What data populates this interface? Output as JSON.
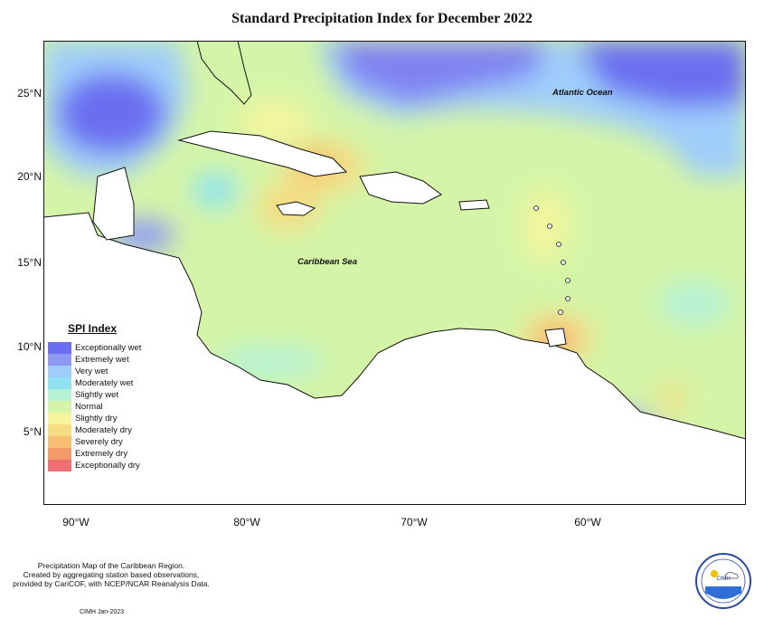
{
  "title": "Standard Precipitation Index for December 2022",
  "latitude_labels": [
    "25°N",
    "20°N",
    "15°N",
    "10°N",
    "5°N"
  ],
  "longitude_labels": [
    "90°W",
    "80°W",
    "70°W",
    "60°W"
  ],
  "place_labels": {
    "ocean": "Atlantic Ocean",
    "sea": "Caribbean Sea"
  },
  "legend": {
    "title": "SPI Index",
    "items": [
      {
        "label": "Exceptionally wet",
        "color": "#6a6ef0"
      },
      {
        "label": "Extremely wet",
        "color": "#8f9af5"
      },
      {
        "label": "Very wet",
        "color": "#9fcdfb"
      },
      {
        "label": "Moderately wet",
        "color": "#8fe3f0"
      },
      {
        "label": "Slightly wet",
        "color": "#b6f2d6"
      },
      {
        "label": "Normal",
        "color": "#d4f5a8"
      },
      {
        "label": "Slightly dry",
        "color": "#f4f59c"
      },
      {
        "label": "Moderately dry",
        "color": "#f6dc82"
      },
      {
        "label": "Severely dry",
        "color": "#f6bf72"
      },
      {
        "label": "Extremely dry",
        "color": "#f49a68"
      },
      {
        "label": "Exceptionally dry",
        "color": "#ee7070"
      }
    ]
  },
  "credit_lines": [
    "Precipitation Map of the Caribbean Region.",
    "Created by aggregating station based observations,",
    "provided by CariCOF, with NCEP/NCAR Reanalysis Data."
  ],
  "stamp": "CIMH Jan-2023",
  "logo": {
    "name": "CIMH"
  }
}
